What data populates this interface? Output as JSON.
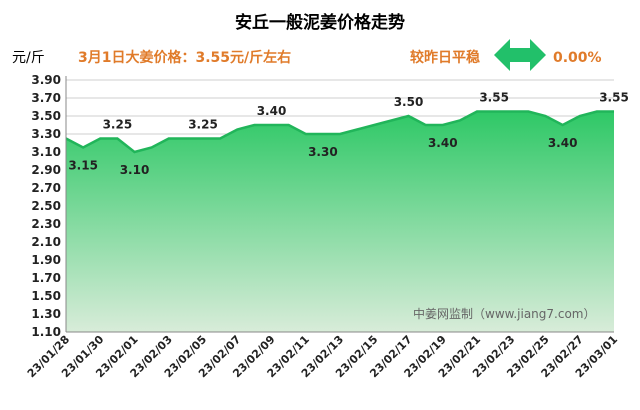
{
  "chart_data": {
    "type": "area",
    "title": "安丘一般泥姜价格走势",
    "ylabel": "元/斤",
    "xlabel": "",
    "ylim": [
      1.1,
      3.9
    ],
    "ytick_step": 0.2,
    "grid": true,
    "x": [
      "23/01/28",
      "23/01/29",
      "23/01/30",
      "23/01/31",
      "23/02/01",
      "23/02/02",
      "23/02/03",
      "23/02/04",
      "23/02/05",
      "23/02/06",
      "23/02/07",
      "23/02/08",
      "23/02/09",
      "23/02/10",
      "23/02/11",
      "23/02/12",
      "23/02/13",
      "23/02/14",
      "23/02/15",
      "23/02/16",
      "23/02/17",
      "23/02/18",
      "23/02/19",
      "23/02/20",
      "23/02/21",
      "23/02/22",
      "23/02/23",
      "23/02/24",
      "23/02/25",
      "23/02/26",
      "23/02/27",
      "23/02/28",
      "23/03/01"
    ],
    "xticks": [
      "23/01/28",
      "23/01/30",
      "23/02/01",
      "23/02/03",
      "23/02/05",
      "23/02/07",
      "23/02/09",
      "23/02/11",
      "23/02/13",
      "23/02/15",
      "23/02/17",
      "23/02/19",
      "23/02/21",
      "23/02/23",
      "23/02/25",
      "23/02/27",
      "23/03/01"
    ],
    "values": [
      3.25,
      3.15,
      3.25,
      3.25,
      3.1,
      3.15,
      3.25,
      3.25,
      3.25,
      3.25,
      3.35,
      3.4,
      3.4,
      3.4,
      3.3,
      3.3,
      3.3,
      3.35,
      3.4,
      3.45,
      3.5,
      3.4,
      3.4,
      3.45,
      3.55,
      3.55,
      3.55,
      3.55,
      3.5,
      3.4,
      3.5,
      3.55,
      3.55
    ],
    "data_labels": [
      {
        "index": 1,
        "text": "3.15",
        "pos": "below"
      },
      {
        "index": 3,
        "text": "3.25",
        "pos": "above"
      },
      {
        "index": 4,
        "text": "3.10",
        "pos": "below"
      },
      {
        "index": 8,
        "text": "3.25",
        "pos": "above"
      },
      {
        "index": 12,
        "text": "3.40",
        "pos": "above"
      },
      {
        "index": 15,
        "text": "3.30",
        "pos": "below"
      },
      {
        "index": 20,
        "text": "3.50",
        "pos": "above"
      },
      {
        "index": 22,
        "text": "3.40",
        "pos": "below"
      },
      {
        "index": 25,
        "text": "3.55",
        "pos": "above"
      },
      {
        "index": 29,
        "text": "3.40",
        "pos": "below"
      },
      {
        "index": 32,
        "text": "3.55",
        "pos": "above"
      }
    ],
    "colors": {
      "line": "#21b55a",
      "fill_top": "#2ec866",
      "fill_bottom": "#d8ecd9",
      "arrow": "#22c06a",
      "accent": "#e07b2a"
    }
  },
  "header": {
    "unit": "元/斤",
    "price_info": "3月1日大姜价格：3.55元/斤左右",
    "compare_label": "较昨日平稳",
    "compare_icon": "double-arrow-icon",
    "compare_value": "0.00%"
  },
  "watermark": "中姜网监制（www.jiang7.com）"
}
